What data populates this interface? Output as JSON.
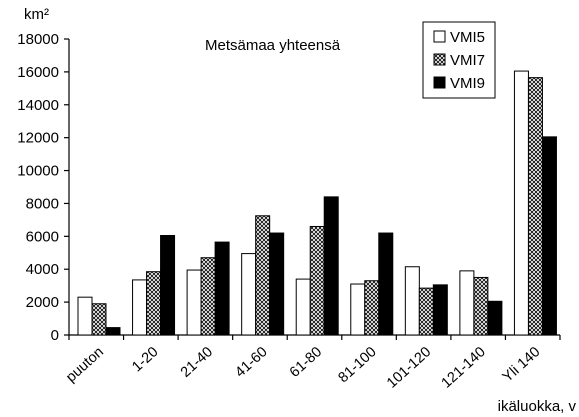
{
  "chart_data": {
    "type": "bar",
    "title": "Metsämaa yhteensä",
    "ylabel": "km²",
    "xlabel": "ikäluokka, v",
    "ylim": [
      0,
      18000
    ],
    "yticks": [
      0,
      2000,
      4000,
      6000,
      8000,
      10000,
      12000,
      14000,
      16000,
      18000
    ],
    "grid": false,
    "legend_position": "top-right",
    "categories": [
      "puuton",
      "1-20",
      "21-40",
      "41-60",
      "61-80",
      "81-100",
      "101-120",
      "121-140",
      "Yli 140"
    ],
    "series": [
      {
        "name": "VMI5",
        "fill": "#ffffff",
        "pattern": "none",
        "values": [
          2300,
          3350,
          3950,
          4950,
          3400,
          3100,
          4150,
          3900,
          16050
        ]
      },
      {
        "name": "VMI7",
        "fill": "#ffffff",
        "pattern": "crosshatch",
        "values": [
          1900,
          3850,
          4700,
          7250,
          6600,
          3300,
          2850,
          3500,
          15650
        ]
      },
      {
        "name": "VMI9",
        "fill": "#000000",
        "pattern": "none",
        "values": [
          450,
          6050,
          5650,
          6200,
          8400,
          6200,
          3050,
          2050,
          12050
        ]
      }
    ]
  }
}
